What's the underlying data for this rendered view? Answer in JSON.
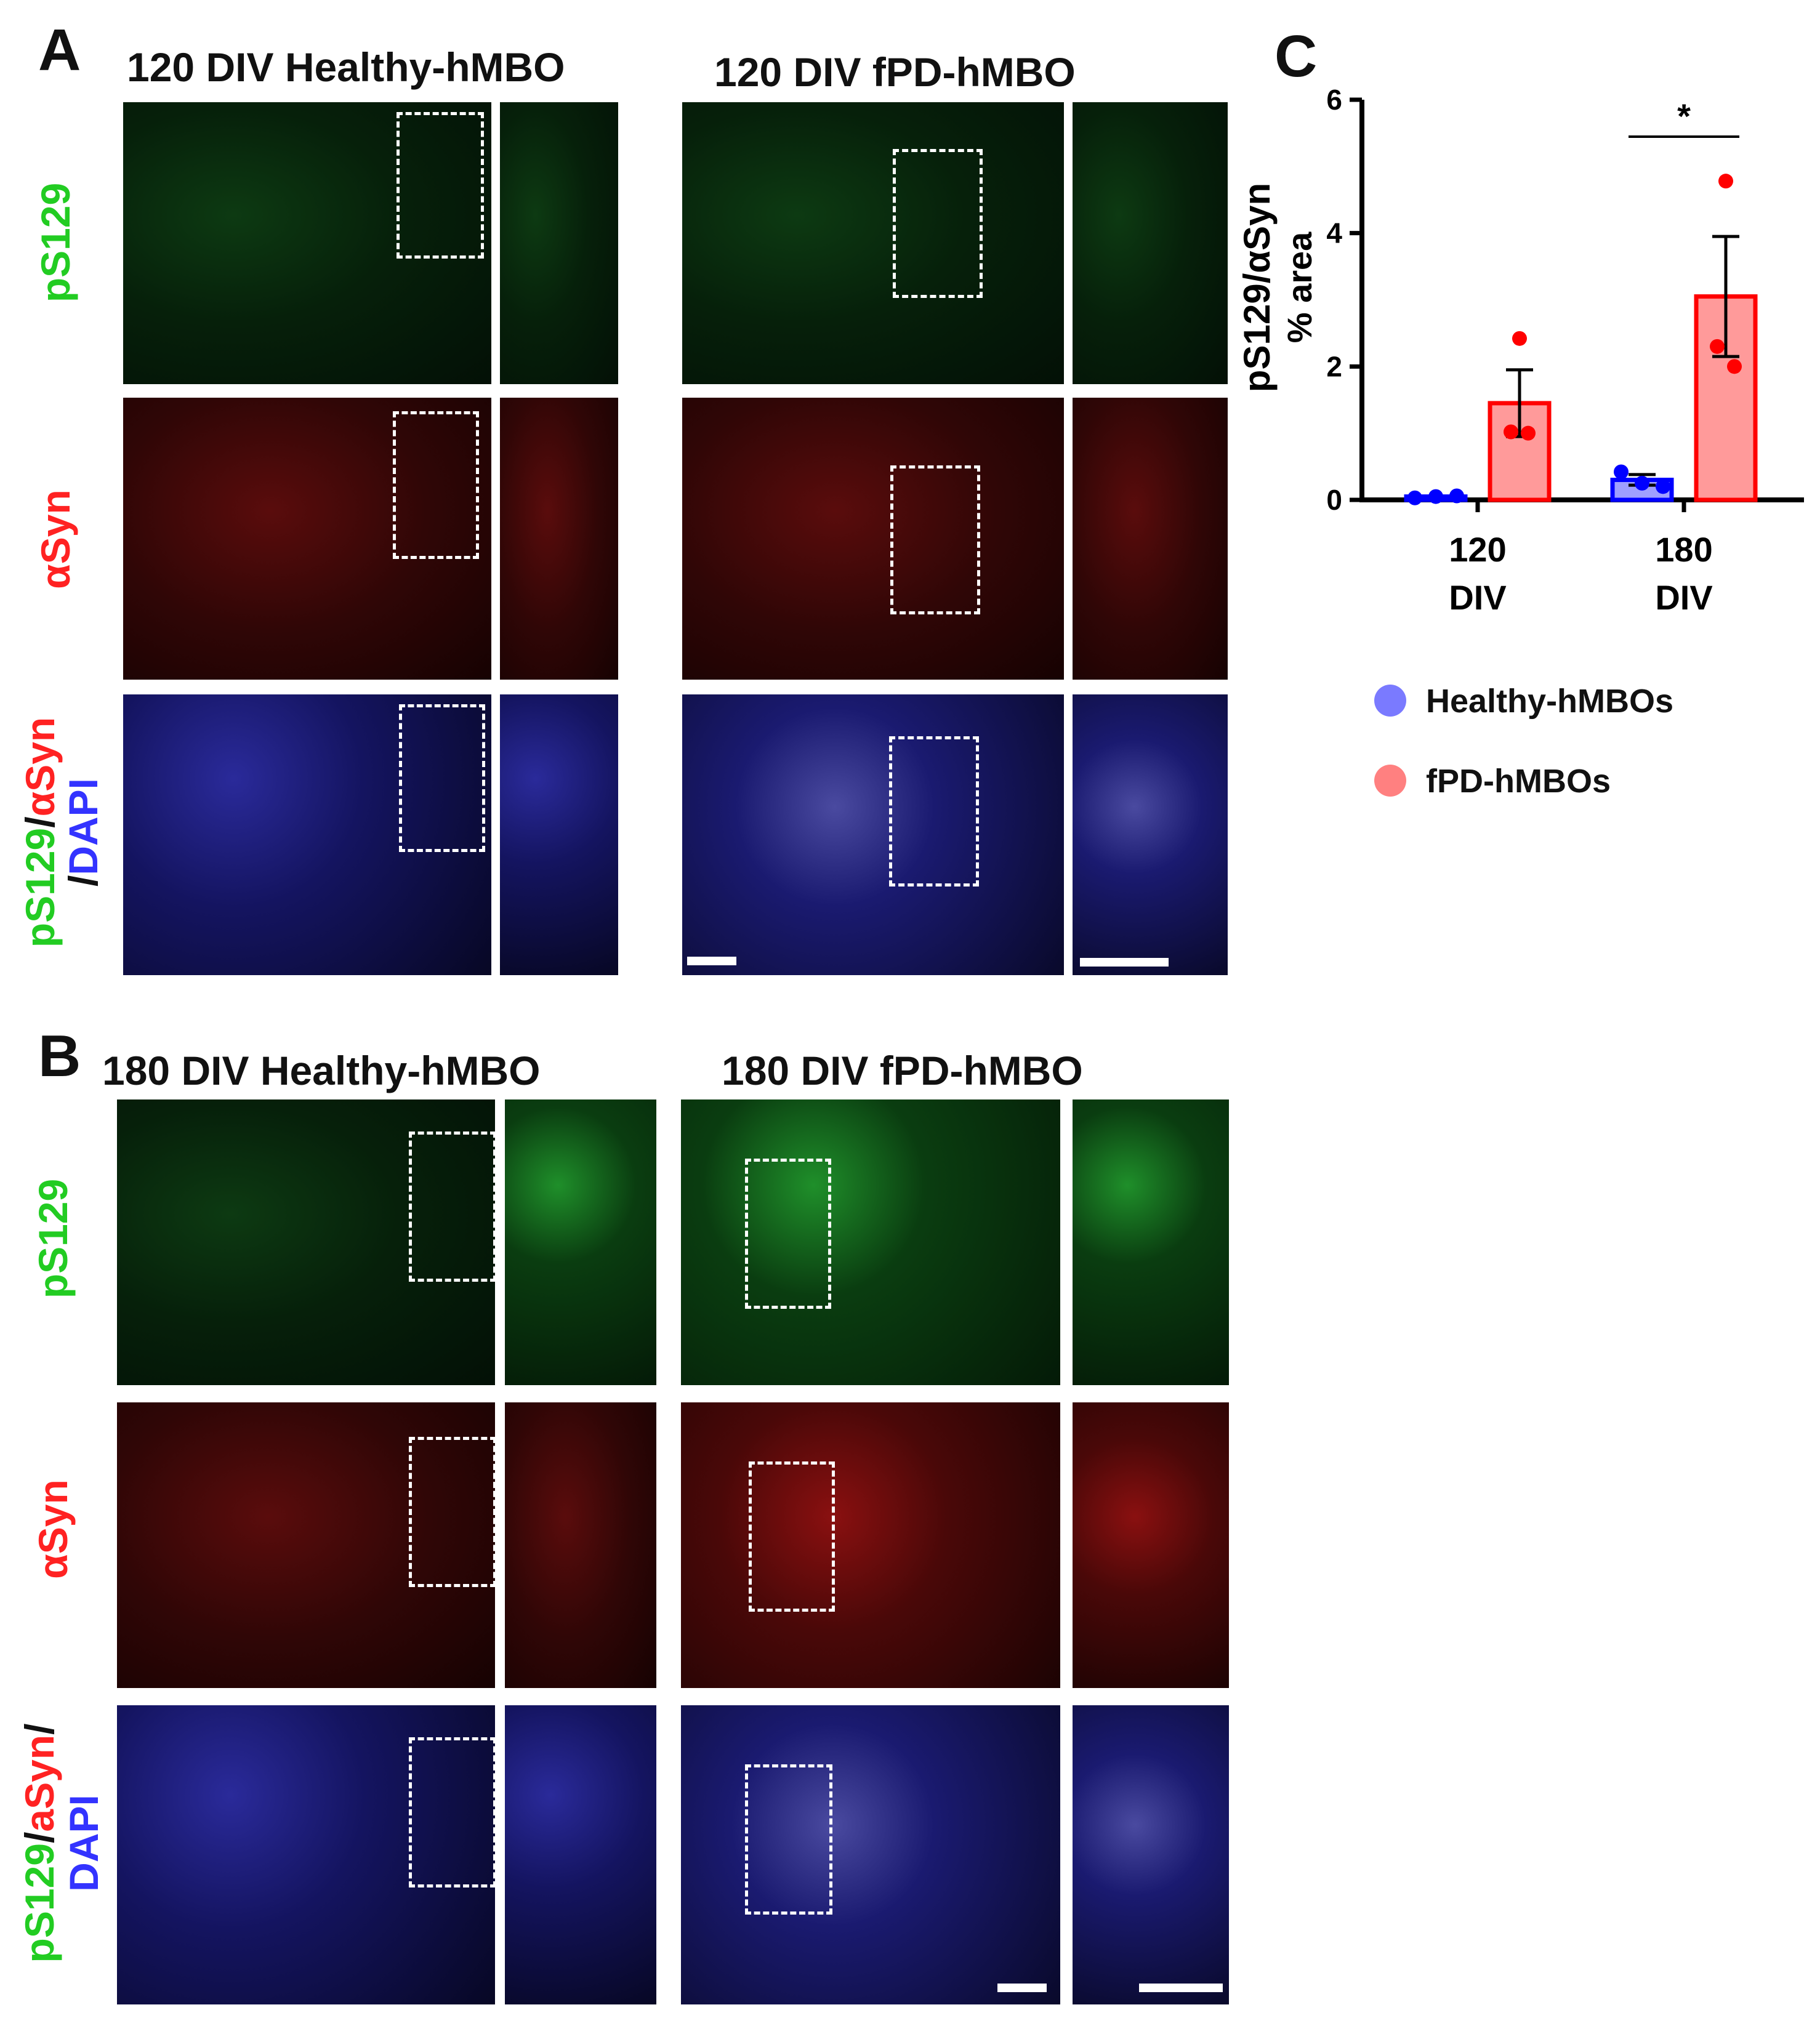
{
  "panels": {
    "A": {
      "letter": "A",
      "healthy_title": "120 DIV Healthy-hMBO",
      "fpd_title": "120 DIV fPD-hMBO",
      "row_labels": {
        "pS129": "pS129",
        "asyn": "αSyn",
        "merge_line1": [
          {
            "text": "pS129",
            "color": "#22cc22"
          },
          {
            "text": "/",
            "color": "#111111"
          },
          {
            "text": "αSyn",
            "color": "#ff2222"
          }
        ],
        "merge_line2": [
          {
            "text": "/",
            "color": "#111111"
          },
          {
            "text": "DAPI",
            "color": "#3333ff"
          }
        ]
      }
    },
    "B": {
      "letter": "B",
      "healthy_title": "180 DIV Healthy-hMBO",
      "fpd_title": "180 DIV fPD-hMBO",
      "row_labels": {
        "pS129": "pS129",
        "asyn": "αSyn",
        "merge_line1": [
          {
            "text": "pS129",
            "color": "#22cc22"
          },
          {
            "text": "/",
            "color": "#111111"
          },
          {
            "text": "aSyn",
            "color": "#ff2222"
          },
          {
            "text": "/",
            "color": "#111111"
          }
        ],
        "merge_line2": [
          {
            "text": "DAPI",
            "color": "#3333ff"
          }
        ]
      }
    },
    "C": {
      "letter": "C"
    }
  },
  "colors": {
    "green_channel": "#22cc22",
    "red_channel": "#ff2222",
    "blue_channel": "#3333ff",
    "healthy": "#0000ff",
    "fpd": "#ff0000"
  },
  "chart_data": {
    "type": "bar",
    "categories": [
      "120\nDIV",
      "180\nDIV"
    ],
    "category_lines": [
      [
        "120",
        "DIV"
      ],
      [
        "180",
        "DIV"
      ]
    ],
    "xlabel": "",
    "ylabel": [
      "pS129/αSyn",
      "% area"
    ],
    "ylim": [
      0,
      6
    ],
    "yticks": [
      0,
      2,
      4,
      6
    ],
    "series": [
      {
        "name": "Healthy-hMBOs",
        "color": "#0000ff",
        "values": [
          0.05,
          0.3
        ],
        "sem": [
          0.0,
          0.08
        ],
        "points": [
          [
            0.03,
            0.05,
            0.06
          ],
          [
            0.42,
            0.25,
            0.2
          ]
        ]
      },
      {
        "name": "fPD-hMBOs",
        "color": "#ff0000",
        "values": [
          1.45,
          3.05
        ],
        "sem": [
          0.5,
          0.9
        ],
        "points": [
          [
            2.42,
            1.02,
            1.0
          ],
          [
            4.78,
            2.3,
            2.0
          ]
        ]
      }
    ],
    "significance": [
      {
        "category": 1,
        "label": "*"
      }
    ],
    "legend": {
      "position": "below",
      "entries": [
        "Healthy-hMBOs",
        "fPD-hMBOs"
      ]
    }
  }
}
